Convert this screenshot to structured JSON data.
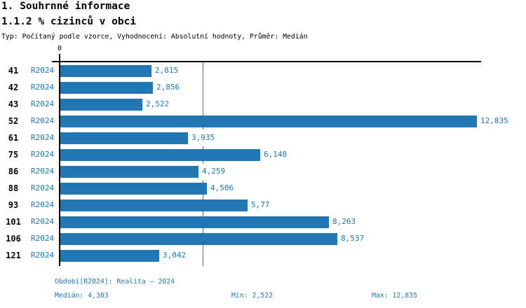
{
  "page": {
    "title": "1. Souhrnné informace",
    "subtitle": "1.1.2 % cizinců v obci",
    "meta": "Typ: Počítaný podle vzorce, Vyhodnocení: Absolutní hodnoty, Průměr: Medián"
  },
  "colors": {
    "bar": "#2077b4",
    "accent": "#1f77b4",
    "axis": "#000000"
  },
  "chart_data": {
    "type": "bar",
    "orientation": "horizontal",
    "title": "1.1.2 % cizinců v obci",
    "axis_zero_label": "0",
    "series_label": "R2024",
    "categories": [
      "41",
      "42",
      "43",
      "52",
      "61",
      "75",
      "86",
      "88",
      "93",
      "101",
      "106",
      "121"
    ],
    "values": [
      2.815,
      2.856,
      2.522,
      12.835,
      3.935,
      6.148,
      4.259,
      4.506,
      5.77,
      8.263,
      8.537,
      3.042
    ],
    "value_labels": [
      "2,815",
      "2,856",
      "2,522",
      "12,835",
      "3,935",
      "6,148",
      "4,259",
      "4,506",
      "5,77",
      "8,263",
      "8,537",
      "3,042"
    ],
    "xlim": [
      0,
      12.96
    ],
    "median_value": 4.383,
    "grid": false,
    "legend_position": "none"
  },
  "footer": {
    "period": "Období[R2024]: Realita – 2024",
    "median": "Medián: 4,383",
    "min": "Min: 2,522",
    "max": "Max: 12,835"
  }
}
